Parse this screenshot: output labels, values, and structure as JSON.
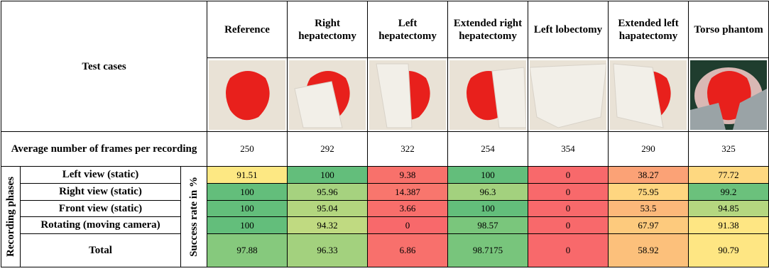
{
  "table": {
    "corner": "Test cases",
    "columns": [
      "Reference",
      "Right hepatectomy",
      "Left hepatectomy",
      "Extended right hepatectomy",
      "Left lobectomy",
      "Extended left hapatectomy",
      "Torso phantom"
    ],
    "frames_label": "Average number of frames per recording",
    "frames": [
      250,
      292,
      322,
      254,
      354,
      290,
      325
    ],
    "group_label": "Recording phases",
    "unit_label": "Success rate in %",
    "rows": [
      {
        "label": "Left view (static)",
        "values": [
          91.51,
          100,
          9.38,
          100,
          0,
          38.27,
          77.72
        ],
        "colors": [
          "#fde883",
          "#63be7b",
          "#f8716b",
          "#63be7b",
          "#f8696b",
          "#fba276",
          "#fed880"
        ]
      },
      {
        "label": "Right view (static)",
        "values": [
          100,
          95.96,
          14.387,
          96.3,
          0,
          75.95,
          99.2
        ],
        "colors": [
          "#63be7b",
          "#a6d27f",
          "#f8766d",
          "#a3d17e",
          "#f8696b",
          "#fed680",
          "#6bc17c"
        ]
      },
      {
        "label": "Front view (static)",
        "values": [
          100,
          95.04,
          3.66,
          100,
          0,
          53.5,
          94.85
        ],
        "colors": [
          "#63be7b",
          "#b3d67f",
          "#f86e6b",
          "#63be7b",
          "#f8696b",
          "#fcb87a",
          "#b5d780"
        ]
      },
      {
        "label": "Rotating (moving camera)",
        "values": [
          100,
          94.32,
          0,
          98.57,
          0,
          67.97,
          91.38
        ],
        "colors": [
          "#63be7b",
          "#c0da81",
          "#f8696b",
          "#7ac67c",
          "#f8696b",
          "#fdca7d",
          "#fee683"
        ]
      },
      {
        "label": "Total",
        "values": [
          97.88,
          96.33,
          6.86,
          98.7175,
          0,
          58.92,
          90.79
        ],
        "colors": [
          "#86c97d",
          "#a3d17e",
          "#f8706c",
          "#78c57c",
          "#f8696b",
          "#fcc07b",
          "#fee683"
        ]
      }
    ]
  }
}
